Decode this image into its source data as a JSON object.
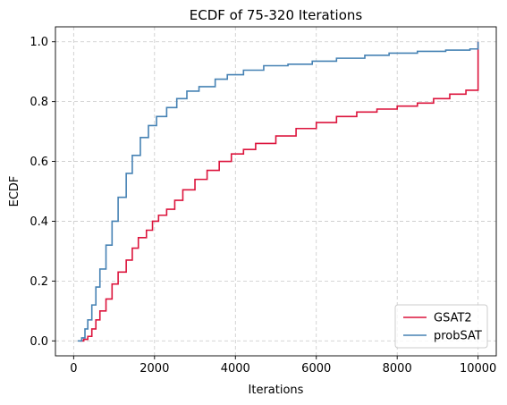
{
  "chart_data": {
    "type": "line",
    "title": "ECDF of 75-320 Iterations",
    "xlabel": "Iterations",
    "ylabel": "ECDF",
    "xlim": [
      -450,
      10450
    ],
    "ylim": [
      -0.05,
      1.05
    ],
    "xticks": [
      0,
      2000,
      4000,
      6000,
      8000,
      10000
    ],
    "yticks": [
      0.0,
      0.2,
      0.4,
      0.6,
      0.8,
      1.0
    ],
    "xtick_labels": [
      "0",
      "2000",
      "4000",
      "6000",
      "8000",
      "10000"
    ],
    "ytick_labels": [
      "0.0",
      "0.2",
      "0.4",
      "0.6",
      "0.8",
      "1.0"
    ],
    "grid": true,
    "legend_position": "lower-right",
    "series": [
      {
        "name": "GSAT2",
        "color": "#dc143c",
        "points": [
          [
            150,
            0.0
          ],
          [
            250,
            0.005
          ],
          [
            350,
            0.015
          ],
          [
            450,
            0.04
          ],
          [
            550,
            0.07
          ],
          [
            650,
            0.1
          ],
          [
            800,
            0.14
          ],
          [
            950,
            0.19
          ],
          [
            1100,
            0.23
          ],
          [
            1300,
            0.27
          ],
          [
            1450,
            0.31
          ],
          [
            1600,
            0.345
          ],
          [
            1800,
            0.37
          ],
          [
            1950,
            0.4
          ],
          [
            2100,
            0.42
          ],
          [
            2300,
            0.44
          ],
          [
            2500,
            0.47
          ],
          [
            2700,
            0.505
          ],
          [
            3000,
            0.54
          ],
          [
            3300,
            0.57
          ],
          [
            3600,
            0.6
          ],
          [
            3900,
            0.625
          ],
          [
            4200,
            0.64
          ],
          [
            4500,
            0.66
          ],
          [
            5000,
            0.685
          ],
          [
            5500,
            0.71
          ],
          [
            6000,
            0.73
          ],
          [
            6500,
            0.75
          ],
          [
            7000,
            0.765
          ],
          [
            7500,
            0.775
          ],
          [
            8000,
            0.785
          ],
          [
            8500,
            0.795
          ],
          [
            8900,
            0.81
          ],
          [
            9300,
            0.825
          ],
          [
            9700,
            0.838
          ],
          [
            10000,
            0.843
          ],
          [
            10000,
            1.0
          ]
        ]
      },
      {
        "name": "probSAT",
        "color": "#4682b4",
        "points": [
          [
            100,
            0.0
          ],
          [
            200,
            0.01
          ],
          [
            280,
            0.04
          ],
          [
            350,
            0.07
          ],
          [
            450,
            0.12
          ],
          [
            550,
            0.18
          ],
          [
            650,
            0.24
          ],
          [
            800,
            0.32
          ],
          [
            950,
            0.4
          ],
          [
            1100,
            0.48
          ],
          [
            1300,
            0.56
          ],
          [
            1450,
            0.62
          ],
          [
            1650,
            0.68
          ],
          [
            1850,
            0.72
          ],
          [
            2050,
            0.75
          ],
          [
            2300,
            0.78
          ],
          [
            2550,
            0.81
          ],
          [
            2800,
            0.835
          ],
          [
            3100,
            0.85
          ],
          [
            3500,
            0.875
          ],
          [
            3800,
            0.89
          ],
          [
            4200,
            0.905
          ],
          [
            4700,
            0.92
          ],
          [
            5300,
            0.925
          ],
          [
            5900,
            0.935
          ],
          [
            6500,
            0.945
          ],
          [
            7200,
            0.955
          ],
          [
            7800,
            0.962
          ],
          [
            8500,
            0.968
          ],
          [
            9200,
            0.972
          ],
          [
            9800,
            0.976
          ],
          [
            10000,
            0.978
          ],
          [
            10000,
            1.0
          ]
        ]
      }
    ]
  }
}
